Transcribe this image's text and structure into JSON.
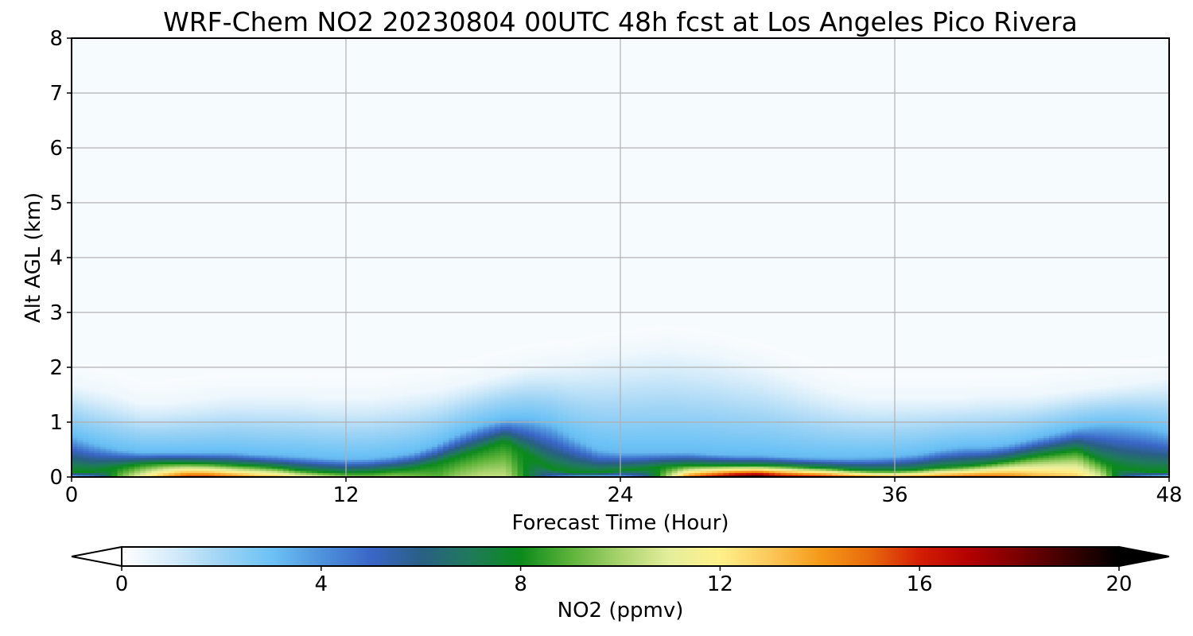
{
  "chart_data": {
    "type": "heatmap",
    "title": "WRF-Chem NO2  20230804 00UTC 48h fcst at Los Angeles Pico Rivera",
    "xlabel": "Forecast Time (Hour)",
    "ylabel": "Alt AGL (km)",
    "xlim": [
      0,
      48
    ],
    "ylim": [
      0,
      8
    ],
    "xticks": [
      "0",
      "12",
      "24",
      "36",
      "48"
    ],
    "yticks": [
      "0",
      "1",
      "2",
      "3",
      "4",
      "5",
      "6",
      "7",
      "8"
    ],
    "grid": true,
    "colorbar": {
      "label": "NO2  (ppmv)",
      "range": [
        0,
        20
      ],
      "ticks": [
        "0",
        "4",
        "8",
        "12",
        "16",
        "20"
      ],
      "extend": "both",
      "colors": [
        "#ffffff",
        "#d6ecfa",
        "#9fd4f5",
        "#6cc2f5",
        "#4f93dc",
        "#3a66c7",
        "#2a5f86",
        "#1f7a5a",
        "#0b8a1c",
        "#5db33a",
        "#a9d36e",
        "#e5ee9c",
        "#fff08a",
        "#fbc85a",
        "#f59a18",
        "#e86a0c",
        "#d41e05",
        "#b30000",
        "#7a0000",
        "#3a0000",
        "#000000"
      ]
    },
    "profile_hours": [
      0,
      1,
      2,
      3,
      4,
      5,
      6,
      7,
      8,
      9,
      10,
      11,
      12,
      13,
      14,
      15,
      16,
      17,
      18,
      19,
      20,
      21,
      22,
      23,
      24,
      25,
      26,
      27,
      28,
      29,
      30,
      31,
      32,
      33,
      34,
      35,
      36,
      37,
      38,
      39,
      40,
      41,
      42,
      43,
      44,
      45,
      46,
      47,
      48
    ],
    "boundary_layer_top_km": [
      0.75,
      0.6,
      0.5,
      0.45,
      0.45,
      0.45,
      0.45,
      0.45,
      0.42,
      0.4,
      0.38,
      0.35,
      0.33,
      0.34,
      0.38,
      0.45,
      0.6,
      0.8,
      0.95,
      1.05,
      1.05,
      0.95,
      0.7,
      0.5,
      0.45,
      0.45,
      0.45,
      0.45,
      0.42,
      0.4,
      0.4,
      0.38,
      0.36,
      0.35,
      0.35,
      0.36,
      0.38,
      0.42,
      0.5,
      0.55,
      0.55,
      0.6,
      0.7,
      0.8,
      0.9,
      0.95,
      0.95,
      0.9,
      0.8
    ],
    "surface_peak_ppmv": [
      2.5,
      4,
      9,
      11.5,
      14,
      16,
      16,
      15,
      14,
      13.5,
      12,
      11,
      10,
      9.5,
      10,
      9.5,
      9,
      10,
      10.5,
      10.5,
      7.5,
      4.5,
      2.5,
      2,
      3,
      5,
      10,
      15,
      17,
      19,
      20,
      18,
      17,
      16.5,
      15.5,
      14.5,
      14,
      14.5,
      15,
      15.5,
      15.5,
      15,
      14,
      13.5,
      13,
      11,
      6,
      3,
      2
    ],
    "layer_depth_km": [
      0.1,
      0.1,
      0.18,
      0.24,
      0.26,
      0.26,
      0.25,
      0.23,
      0.21,
      0.18,
      0.13,
      0.1,
      0.08,
      0.09,
      0.12,
      0.16,
      0.25,
      0.38,
      0.52,
      0.66,
      0.4,
      0.15,
      0.08,
      0.08,
      0.12,
      0.15,
      0.2,
      0.22,
      0.22,
      0.22,
      0.22,
      0.21,
      0.19,
      0.17,
      0.14,
      0.12,
      0.12,
      0.14,
      0.18,
      0.2,
      0.24,
      0.3,
      0.38,
      0.44,
      0.5,
      0.3,
      0.15,
      0.1,
      0.1
    ],
    "residual_layer_top_km": [
      1.7,
      1.6,
      1.5,
      1.35,
      1.35,
      1.4,
      1.45,
      1.5,
      1.5,
      1.5,
      1.5,
      1.45,
      1.45,
      1.45,
      1.5,
      1.55,
      1.6,
      1.7,
      1.8,
      1.9,
      2.0,
      2.05,
      2.1,
      2.2,
      2.25,
      2.3,
      2.35,
      2.3,
      2.25,
      2.15,
      2.05,
      1.9,
      1.75,
      1.6,
      1.5,
      1.45,
      1.45,
      1.45,
      1.45,
      1.45,
      1.5,
      1.5,
      1.5,
      1.55,
      1.6,
      1.65,
      1.7,
      1.75,
      1.8
    ]
  }
}
